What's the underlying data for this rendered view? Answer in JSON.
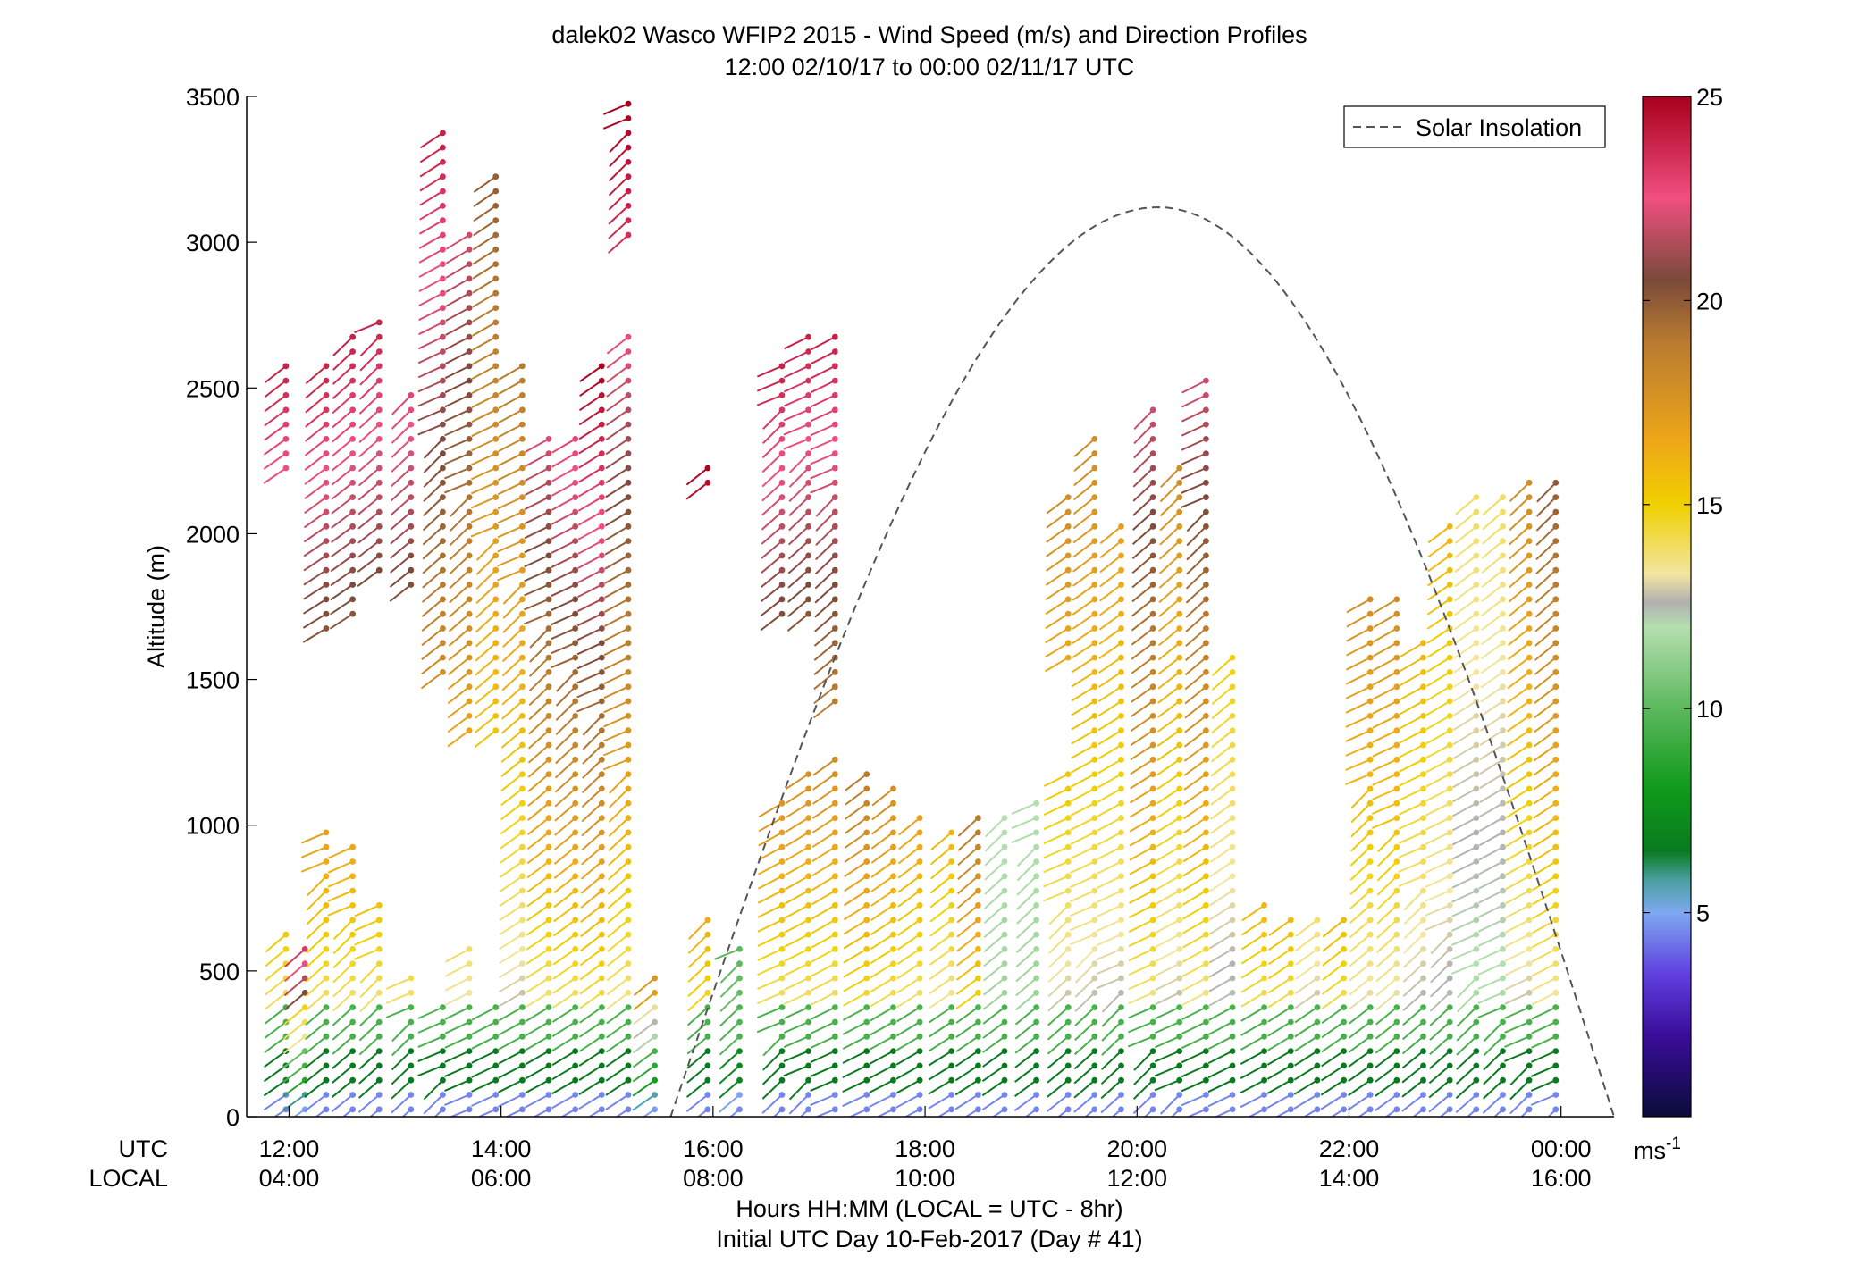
{
  "chart_data": {
    "type": "scatter",
    "title": "dalek02 Wasco WFIP2 2015 - Wind Speed (m/s) and Direction Profiles",
    "subtitle": "12:00 02/10/17 to 00:00 02/11/17  UTC",
    "xlabel": "Hours HH:MM  (LOCAL = UTC - 8hr)",
    "xlabel2": "Initial UTC Day 10-Feb-2017 (Day # 41)",
    "ylabel": "Altitude (m)",
    "xlim_hours_utc": [
      11.6,
      24.5
    ],
    "ylim": [
      0,
      3500
    ],
    "y_ticks": [
      0,
      500,
      1000,
      1500,
      2000,
      2500,
      3000,
      3500
    ],
    "x_row_label_utc": "UTC",
    "x_row_label_local": "LOCAL",
    "x_ticks_utc": [
      "12:00",
      "14:00",
      "16:00",
      "18:00",
      "20:00",
      "22:00",
      "00:00"
    ],
    "x_ticks_local": [
      "04:00",
      "06:00",
      "08:00",
      "10:00",
      "12:00",
      "14:00",
      "16:00"
    ],
    "x_tick_hours_utc": [
      12,
      14,
      16,
      18,
      20,
      22,
      24
    ],
    "legend": {
      "label": "Solar Insolation",
      "position": "top-right",
      "style": "dashed"
    },
    "solar_insolation": {
      "rise_hour_utc": 15.6,
      "set_hour_utc": 24.5,
      "peak_hour_utc": 20.2,
      "peak_value_m": 3120
    },
    "colorbar": {
      "unit": "ms-1",
      "unit_base": "ms",
      "unit_exp": "-1",
      "range": [
        0,
        25
      ],
      "ticks": [
        5,
        10,
        15,
        20,
        25
      ],
      "stops": [
        {
          "v": 0,
          "c": "#0b0b3a"
        },
        {
          "v": 2,
          "c": "#3a0d9a"
        },
        {
          "v": 3.5,
          "c": "#6040e0"
        },
        {
          "v": 5,
          "c": "#7ea8f0"
        },
        {
          "v": 5.8,
          "c": "#4aa0a0"
        },
        {
          "v": 6.5,
          "c": "#0a7a20"
        },
        {
          "v": 8,
          "c": "#0e9a1a"
        },
        {
          "v": 10,
          "c": "#5cb85c"
        },
        {
          "v": 12,
          "c": "#b5dfb0"
        },
        {
          "v": 12.6,
          "c": "#b0b0b0"
        },
        {
          "v": 13.3,
          "c": "#f2e6a0"
        },
        {
          "v": 15,
          "c": "#f0d000"
        },
        {
          "v": 16.5,
          "c": "#eea818"
        },
        {
          "v": 19,
          "c": "#b87a30"
        },
        {
          "v": 20.5,
          "c": "#7a4a3a"
        },
        {
          "v": 22.5,
          "c": "#f04f80"
        },
        {
          "v": 25,
          "c": "#a8001c"
        }
      ]
    },
    "profiles": [
      {
        "t": 11.97,
        "top": 2600,
        "top_speed": 24,
        "gap": [
          650,
          2200
        ]
      },
      {
        "t": 12.15,
        "top": 620,
        "top_speed": 24
      },
      {
        "t": 12.35,
        "top": 2600,
        "top_speed": 24,
        "gap": [
          1000,
          1650
        ]
      },
      {
        "t": 12.6,
        "top": 2680,
        "top_speed": 24,
        "gap": [
          950,
          1700
        ]
      },
      {
        "t": 12.85,
        "top": 2750,
        "top_speed": 24,
        "gap": [
          760,
          1850
        ]
      },
      {
        "t": 13.15,
        "top": 2500,
        "top_speed": 23,
        "gap": [
          520,
          1800
        ]
      },
      {
        "t": 13.45,
        "top": 3380,
        "top_speed": 24,
        "gap": [
          420,
          1500
        ]
      },
      {
        "t": 13.7,
        "top": 3050,
        "top_speed": 22,
        "gap": [
          620,
          1300
        ]
      },
      {
        "t": 13.95,
        "top": 3250,
        "top_speed": 20,
        "gap": [
          420,
          1300
        ]
      },
      {
        "t": 14.2,
        "top": 2600,
        "top_speed": 19
      },
      {
        "t": 14.45,
        "top": 2330,
        "top_speed": 22
      },
      {
        "t": 14.7,
        "top": 2350,
        "top_speed": 23
      },
      {
        "t": 14.95,
        "top": 2600,
        "top_speed": 25
      },
      {
        "t": 15.2,
        "top": 3480,
        "top_speed": 25,
        "gap": [
          2700,
          3000
        ]
      },
      {
        "t": 15.45,
        "top": 520,
        "top_speed": 18
      },
      {
        "t": 15.95,
        "top": 2260,
        "top_speed": 25,
        "gap": [
          700,
          2150
        ]
      },
      {
        "t": 16.25,
        "top": 580,
        "top_speed": 10
      },
      {
        "t": 16.65,
        "top": 2600,
        "top_speed": 24,
        "gap": [
          1100,
          1700
        ]
      },
      {
        "t": 16.9,
        "top": 2700,
        "top_speed": 24,
        "gap": [
          1200,
          1700
        ]
      },
      {
        "t": 17.15,
        "top": 2690,
        "top_speed": 24,
        "gap": [
          1250,
          1400
        ]
      },
      {
        "t": 17.45,
        "top": 1200,
        "top_speed": 19
      },
      {
        "t": 17.7,
        "top": 1150,
        "top_speed": 18
      },
      {
        "t": 17.95,
        "top": 1060,
        "top_speed": 17
      },
      {
        "t": 18.25,
        "top": 1000,
        "top_speed": 16
      },
      {
        "t": 18.5,
        "top": 1030,
        "top_speed": 19
      },
      {
        "t": 18.75,
        "top": 1030,
        "top_speed": 12
      },
      {
        "t": 19.05,
        "top": 1120,
        "top_speed": 12
      },
      {
        "t": 19.35,
        "top": 2150,
        "top_speed": 18,
        "gap": [
          1200,
          1550
        ]
      },
      {
        "t": 19.6,
        "top": 2330,
        "top_speed": 18
      },
      {
        "t": 19.85,
        "top": 2050,
        "top_speed": 17
      },
      {
        "t": 20.15,
        "top": 2460,
        "top_speed": 22
      },
      {
        "t": 20.4,
        "top": 2250,
        "top_speed": 18
      },
      {
        "t": 20.65,
        "top": 2550,
        "top_speed": 22
      },
      {
        "t": 20.9,
        "top": 1620,
        "top_speed": 15
      },
      {
        "t": 21.2,
        "top": 740,
        "top_speed": 16
      },
      {
        "t": 21.45,
        "top": 720,
        "top_speed": 16
      },
      {
        "t": 21.7,
        "top": 720,
        "top_speed": 14
      },
      {
        "t": 21.95,
        "top": 720,
        "top_speed": 16
      },
      {
        "t": 22.2,
        "top": 1820,
        "top_speed": 18
      },
      {
        "t": 22.45,
        "top": 1800,
        "top_speed": 18
      },
      {
        "t": 22.7,
        "top": 1650,
        "top_speed": 16
      },
      {
        "t": 22.95,
        "top": 2050,
        "top_speed": 16
      },
      {
        "t": 23.2,
        "top": 2130,
        "top_speed": 14
      },
      {
        "t": 23.45,
        "top": 2150,
        "top_speed": 14
      },
      {
        "t": 23.7,
        "top": 2180,
        "top_speed": 18
      },
      {
        "t": 23.95,
        "top": 2180,
        "top_speed": 20
      }
    ]
  }
}
